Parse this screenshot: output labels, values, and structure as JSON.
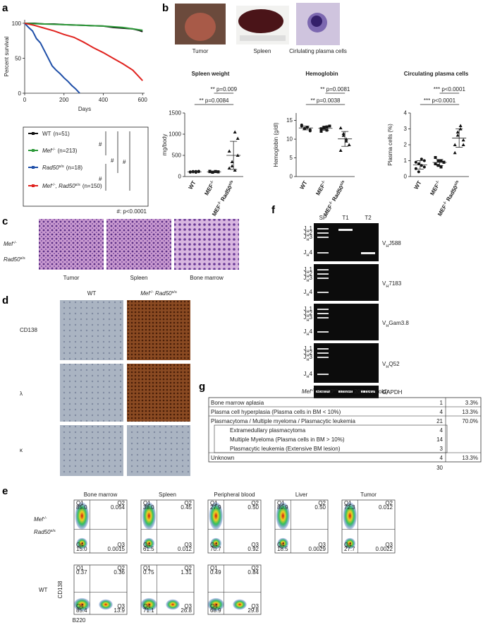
{
  "panel_labels": [
    "a",
    "b",
    "c",
    "d",
    "e",
    "f",
    "g"
  ],
  "survival": {
    "type": "line",
    "ylabel": "Percent survival",
    "xlabel": "Days",
    "xlim": [
      0,
      610
    ],
    "ylim": [
      0,
      105
    ],
    "xticks": [
      0,
      200,
      400,
      600
    ],
    "yticks": [
      0,
      50,
      100
    ],
    "series": [
      {
        "name": [
          {
            "t": "WT"
          }
        ],
        "n": "(n=51)",
        "color": "#111111",
        "x": [
          0,
          50,
          100,
          150,
          200,
          300,
          400,
          450,
          500,
          550,
          580,
          600
        ],
        "values": [
          100,
          100,
          99,
          99,
          98,
          97,
          96,
          94,
          93,
          92,
          90,
          88
        ]
      },
      {
        "name": [
          {
            "t": "Mef",
            "i": true
          },
          {
            "t": "-/-",
            "sup": true
          }
        ],
        "n": "(n=213)",
        "color": "#2e9a3a",
        "x": [
          0,
          100,
          200,
          300,
          400,
          500,
          550,
          600
        ],
        "values": [
          100,
          99,
          98,
          97,
          96,
          94,
          92,
          90
        ]
      },
      {
        "name": [
          {
            "t": "Rad50",
            "i": true
          },
          {
            "t": "s/s",
            "sup": true
          }
        ],
        "n": "(n=18)",
        "color": "#1f4fa8",
        "x": [
          0,
          20,
          40,
          60,
          80,
          100,
          120,
          140,
          160,
          180,
          200,
          220,
          240,
          260,
          280
        ],
        "values": [
          100,
          94,
          89,
          78,
          72,
          61,
          50,
          39,
          33,
          28,
          22,
          17,
          11,
          6,
          0
        ]
      },
      {
        "name": [
          {
            "t": "Mef",
            "i": true
          },
          {
            "t": "-/-",
            "sup": true
          },
          {
            "t": ", Rad50",
            "i": true
          },
          {
            "t": "s/s",
            "sup": true
          }
        ],
        "n": "(n=150)",
        "color": "#e0231f",
        "x": [
          0,
          50,
          100,
          150,
          200,
          250,
          300,
          350,
          400,
          450,
          500,
          550,
          580,
          600
        ],
        "values": [
          100,
          97,
          93,
          89,
          84,
          80,
          73,
          65,
          58,
          50,
          42,
          33,
          24,
          18
        ]
      }
    ],
    "sig": [
      "#",
      "#",
      "#",
      "#"
    ],
    "note": "#: p<0.0001"
  },
  "photos": [
    "Tumor",
    "Spleen",
    "Cirlulating plasma cells"
  ],
  "scatter": [
    {
      "type": "scatter",
      "title": "Spleen weight",
      "ylabel": "mg/body",
      "ylim": [
        0,
        1500
      ],
      "yticks": [
        0,
        500,
        1000,
        1500
      ],
      "pvals": [
        "** p=0.009",
        "** p=0.0084"
      ],
      "groups": [
        {
          "label": [
            {
              "t": "WT"
            }
          ],
          "values": [
            110,
            120,
            100,
            115,
            105,
            110,
            120,
            125
          ]
        },
        {
          "label": [
            {
              "t": "MEF"
            },
            {
              "t": "-/-",
              "sup": true
            }
          ],
          "values": [
            115,
            105,
            120,
            110,
            125,
            100,
            118,
            112
          ]
        },
        {
          "label": [
            {
              "t": "MEF"
            },
            {
              "t": "-/-",
              "sup": true
            },
            {
              "t": " Rad50"
            },
            {
              "t": "s/s",
              "sup": true
            }
          ],
          "values": [
            200,
            350,
            1050,
            900,
            600,
            250,
            150,
            500
          ]
        }
      ]
    },
    {
      "type": "scatter",
      "title": "Hemoglobin",
      "ylabel": "Hemoglobin (g/dl)",
      "ylim": [
        0,
        17
      ],
      "yticks": [
        0,
        5,
        10,
        15
      ],
      "pvals": [
        "** p=0.0081",
        "** p=0.0038"
      ],
      "groups": [
        {
          "label": [
            {
              "t": "WT"
            }
          ],
          "values": [
            13.5,
            12.8,
            13.2,
            12.5,
            13.8,
            12.9,
            13.1,
            12.2
          ]
        },
        {
          "label": [
            {
              "t": "MEF"
            },
            {
              "t": "-/-",
              "sup": true
            }
          ],
          "values": [
            12.8,
            13.2,
            12.4,
            13.5,
            12.1,
            12.9,
            13.3
          ]
        },
        {
          "label": [
            {
              "t": "MEF"
            },
            {
              "t": "-/-",
              "sup": true
            },
            {
              "t": " Rad50"
            },
            {
              "t": "s/s",
              "sup": true
            }
          ],
          "values": [
            13.0,
            11.5,
            10.0,
            8.5,
            7.0,
            11.0,
            9.5
          ]
        }
      ]
    },
    {
      "type": "scatter",
      "title": "Circulating plasma cells",
      "ylabel": "Plasma cells (%)",
      "ylim": [
        0,
        4
      ],
      "yticks": [
        0,
        1,
        2,
        3,
        4
      ],
      "pvals": [
        "*** p<0.0001",
        "*** p<0.0001"
      ],
      "groups": [
        {
          "label": [
            {
              "t": "WT"
            }
          ],
          "values": [
            0.5,
            0.8,
            1.1,
            0.6,
            0.9,
            0.3,
            0.7,
            1.0
          ]
        },
        {
          "label": [
            {
              "t": "MEF"
            },
            {
              "t": "-/-",
              "sup": true
            }
          ],
          "values": [
            0.8,
            1.0,
            0.6,
            0.9,
            1.2,
            0.7,
            1.0,
            0.9
          ]
        },
        {
          "label": [
            {
              "t": "MEF"
            },
            {
              "t": "-/-",
              "sup": true
            },
            {
              "t": " Rad50"
            },
            {
              "t": "s/s",
              "sup": true
            }
          ],
          "values": [
            2.0,
            2.8,
            3.0,
            2.3,
            1.5,
            2.6,
            3.2,
            2.0
          ]
        }
      ]
    }
  ],
  "histology": {
    "genotype": [
      [
        {
          "t": "Mef",
          "i": true
        },
        {
          "t": "-/-",
          "sup": true
        }
      ],
      [
        {
          "t": "Rad50",
          "i": true
        },
        {
          "t": "s/s",
          "sup": true
        }
      ]
    ],
    "tissues": [
      "Tumor",
      "Spleen",
      "Bone marrow"
    ]
  },
  "ihc": {
    "columns": [
      [
        {
          "t": "WT"
        }
      ],
      [
        {
          "t": "Mef",
          "i": true
        },
        {
          "t": "-/-",
          "sup": true
        },
        {
          "t": " Rad50",
          "i": true
        },
        {
          "t": "s/s",
          "sup": true
        }
      ]
    ],
    "rows": [
      "CD138",
      "λ",
      "κ"
    ]
  },
  "flow": {
    "tissues": [
      "Bone marrow",
      "Spleen",
      "Peripheral blood",
      "Liver",
      "Tumor"
    ],
    "quadrants": [
      "Q1",
      "Q2",
      "Q3",
      "Q4"
    ],
    "ylabel": "CD138",
    "xlabel": "B220",
    "rows": [
      {
        "label": [
          [
            {
              "t": "Mef",
              "i": true
            },
            {
              "t": "-/-",
              "sup": true
            }
          ],
          [
            {
              "t": "Rad50",
              "i": true
            },
            {
              "t": "s/s",
              "sup": true
            }
          ]
        ],
        "plots": [
          [
            "85.0",
            "0.054",
            "0.0015",
            "15.0"
          ],
          [
            "38.0",
            "0.45",
            "0.012",
            "61.5"
          ],
          [
            "27.9",
            "0.50",
            "0.92",
            "70.7"
          ],
          [
            "80.9",
            "0.50",
            "0.0029",
            "18.5"
          ],
          [
            "72.3",
            "0.012",
            "0.0022",
            "27.7"
          ]
        ]
      },
      {
        "label": [
          [
            {
              "t": "WT"
            }
          ]
        ],
        "plots": [
          [
            "0.37",
            "0.36",
            "13.9",
            "85.4"
          ],
          [
            "0.75",
            "1.31",
            "26.8",
            "71.1"
          ],
          [
            "0.49",
            "0.84",
            "29.8",
            "68.9"
          ]
        ]
      }
    ]
  },
  "gel": {
    "lanes": [
      "SP",
      "T1",
      "T2"
    ],
    "markers": [
      [
        {
          "t": "J"
        },
        {
          "t": "H",
          "sub": true
        },
        {
          "t": "1"
        }
      ],
      [
        {
          "t": "J"
        },
        {
          "t": "H",
          "sub": true
        },
        {
          "t": "2"
        }
      ],
      [
        {
          "t": "J"
        },
        {
          "t": "H",
          "sub": true
        },
        {
          "t": "3"
        }
      ],
      [
        {
          "t": "J"
        },
        {
          "t": "H",
          "sub": true
        },
        {
          "t": "4"
        }
      ]
    ],
    "genes": [
      [
        {
          "t": "V"
        },
        {
          "t": "H",
          "sub": true
        },
        {
          "t": "J588"
        }
      ],
      [
        {
          "t": "V"
        },
        {
          "t": "H",
          "sub": true
        },
        {
          "t": "7183"
        }
      ],
      [
        {
          "t": "V"
        },
        {
          "t": "H",
          "sub": true
        },
        {
          "t": "Gam3.8"
        }
      ],
      [
        {
          "t": "V"
        },
        {
          "t": "H",
          "sub": true
        },
        {
          "t": "Q52"
        }
      ]
    ],
    "control": "GAPDH"
  },
  "table": {
    "title": [
      {
        "t": "Mef",
        "i": true
      },
      {
        "t": "-/-",
        "sup": true
      },
      {
        "t": " Rad50",
        "i": true
      },
      {
        "t": "s/s",
        "sup": true
      },
      {
        "t": " (over 200 days old)"
      }
    ],
    "rows": [
      {
        "cells": [
          "Bone marrow aplasia",
          "1",
          "3.3%"
        ]
      },
      {
        "cells": [
          "Plasma cell hyperplasia (Plasma cells in BM < 10%)",
          "4",
          "13.3%"
        ]
      },
      {
        "cells": [
          "Plasmacytoma / Multiple myeloma / Plasmacytic leukemia",
          "21",
          "70.0%"
        ]
      },
      {
        "cells": [
          "Extramedullary plasmacytoma",
          "4"
        ],
        "sub": true
      },
      {
        "cells": [
          "Multiple Myeloma (Plasma cells in BM > 10%)",
          "14"
        ],
        "sub": true
      },
      {
        "cells": [
          "Plasmacytic leukemia (Extensive BM lesion)",
          "3"
        ],
        "sub": true
      },
      {
        "cells": [
          "Unknown",
          "4",
          "13.3%"
        ]
      }
    ],
    "total": "30"
  }
}
